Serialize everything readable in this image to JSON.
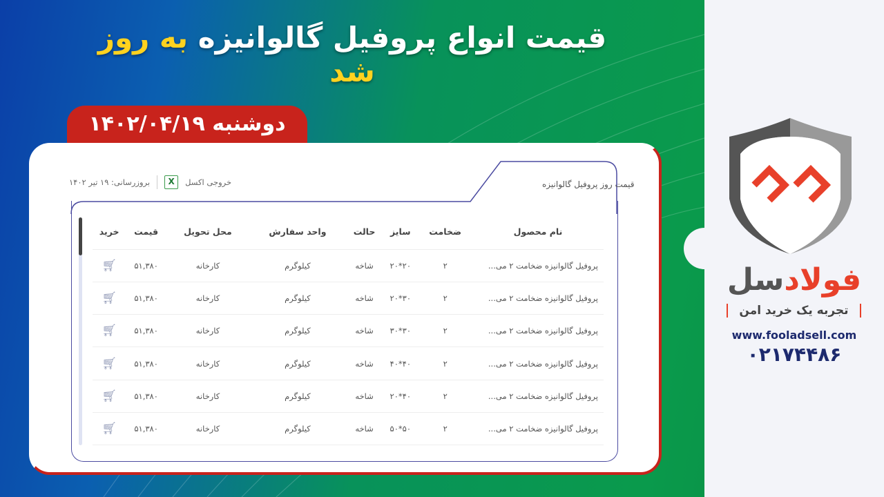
{
  "banner": {
    "title_main": "قیمت انواع پروفیل گالوانیزه",
    "title_highlight": "به روز شد",
    "date": "دوشنبه  ۱۴۰۲/۰۴/۱۹"
  },
  "card": {
    "tab_title": "قیمت روز پروفیل گالوانیزه",
    "excel_label": "خروجی اکسل",
    "updated": "بروزرسانی: ۱۹ تیر ۱۴۰۲"
  },
  "table": {
    "headers": [
      "نام محصول",
      "ضخامت",
      "سایز",
      "حالت",
      "واحد سفارش",
      "محل تحویل",
      "قیمت",
      "خرید"
    ],
    "rows": [
      [
        "پروفیل گالوانیزه ضخامت ۲ می...",
        "۲",
        "۲۰*۲۰",
        "شاخه",
        "کیلوگرم",
        "کارخانه",
        "۵۱,۳۸۰"
      ],
      [
        "پروفیل گالوانیزه ضخامت ۲ می...",
        "۲",
        "۳۰*۲۰",
        "شاخه",
        "کیلوگرم",
        "کارخانه",
        "۵۱,۳۸۰"
      ],
      [
        "پروفیل گالوانیزه ضخامت ۲ می...",
        "۲",
        "۳۰*۳۰",
        "شاخه",
        "کیلوگرم",
        "کارخانه",
        "۵۱,۳۸۰"
      ],
      [
        "پروفیل گالوانیزه ضخامت ۲ می...",
        "۲",
        "۴۰*۴۰",
        "شاخه",
        "کیلوگرم",
        "کارخانه",
        "۵۱,۳۸۰"
      ],
      [
        "پروفیل گالوانیزه ضخامت ۲ می...",
        "۲",
        "۴۰*۲۰",
        "شاخه",
        "کیلوگرم",
        "کارخانه",
        "۵۱,۳۸۰"
      ],
      [
        "پروفیل گالوانیزه ضخامت ۲ می...",
        "۲",
        "۵۰*۵۰",
        "شاخه",
        "کیلوگرم",
        "کارخانه",
        "۵۱,۳۸۰"
      ]
    ]
  },
  "brand": {
    "name_part1": "فولاد",
    "name_part2": "سل",
    "slogan": "تجربه یک خرید امن",
    "url": "www.fooladsell.com",
    "phone": "۰۲۱۷۴۴۸۶",
    "colors": {
      "accent": "#e8402a",
      "navy": "#1d2a6e",
      "red": "#c8231c",
      "yellow": "#ffd21f"
    }
  }
}
